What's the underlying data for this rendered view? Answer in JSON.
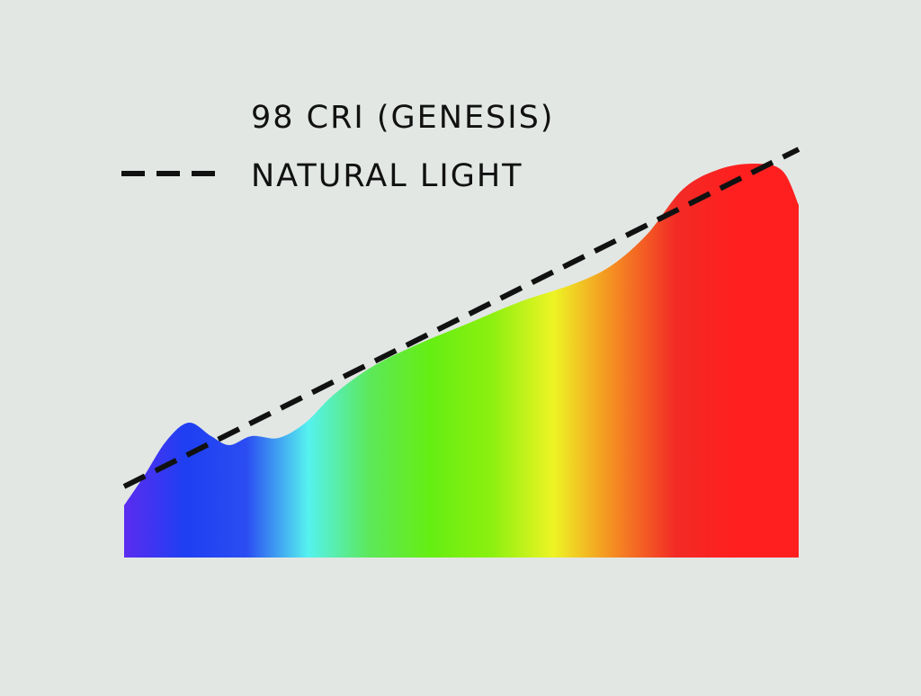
{
  "chart_data": {
    "type": "area",
    "series": [
      {
        "name": "98 CRI (GENESIS)",
        "style": "gradient-area",
        "colors": [
          "#5b2cf0",
          "#1e3ff2",
          "#2b4df2",
          "#55f2f0",
          "#5ce85a",
          "#66ee12",
          "#8cf010",
          "#eef424",
          "#f58a22",
          "#f22a26",
          "#ff1f1f",
          "#ff1f1f"
        ],
        "x": [
          0,
          2.9,
          6.3,
          9.6,
          12.9,
          15.6,
          18.9,
          22.9,
          26.9,
          30.9,
          36.3,
          42.9,
          50.9,
          58.9,
          66.9,
          72.3,
          77.6,
          82.9,
          88.3,
          93.6,
          97.6,
          100
        ],
        "values": [
          11.6,
          18,
          26,
          30,
          27,
          25,
          27,
          26.6,
          30,
          36,
          42,
          47,
          52,
          57,
          61,
          65,
          72,
          82,
          86.4,
          87.6,
          86,
          78.4
        ]
      },
      {
        "name": "NATURAL LIGHT",
        "style": "dashed-line",
        "color": "#111111",
        "x": [
          0,
          100
        ],
        "values": [
          15.8,
          90.8
        ]
      }
    ],
    "xlim": [
      0,
      100
    ],
    "ylim": [
      0,
      100
    ]
  }
}
